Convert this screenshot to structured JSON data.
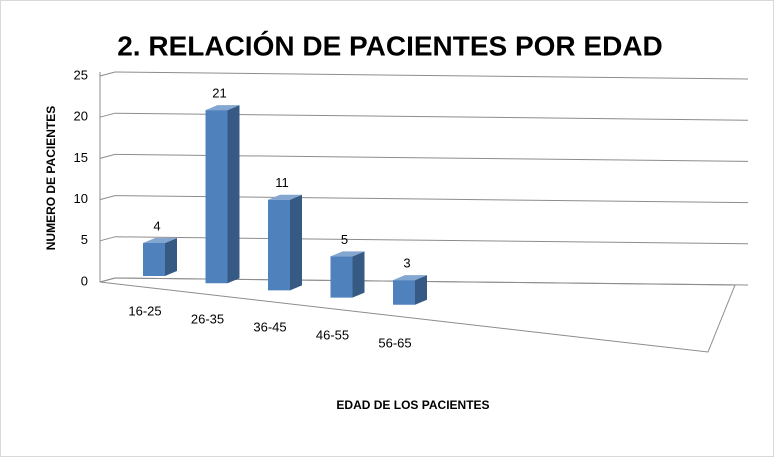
{
  "chart_data": {
    "type": "bar3d",
    "title": "2. RELACIÓN DE PACIENTES POR EDAD",
    "categories": [
      "16-25",
      "26-35",
      "36-45",
      "46-55",
      "56-65"
    ],
    "values": [
      4,
      21,
      11,
      5,
      3
    ],
    "color": "#4f81bd",
    "ylim": [
      0,
      25
    ],
    "yticks": [
      0,
      5,
      10,
      15,
      20,
      25
    ],
    "grid": true,
    "x_label": "EDAD DE LOS PACIENTES",
    "y_label": "NUMERO DE PACIENTES"
  }
}
